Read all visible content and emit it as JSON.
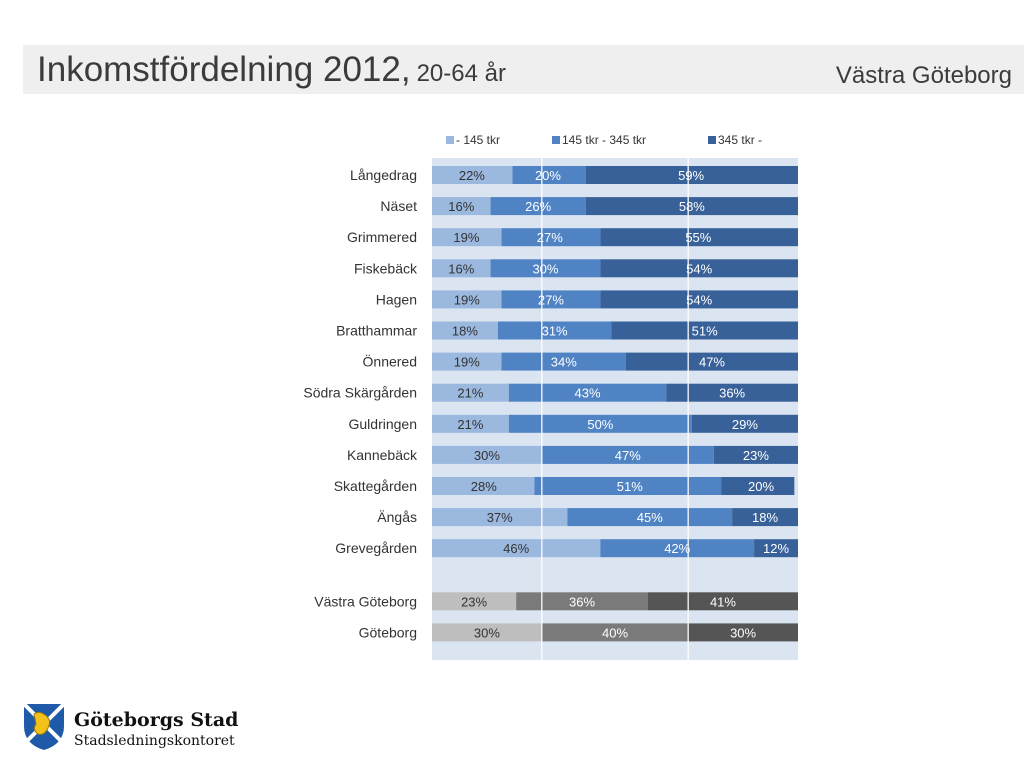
{
  "header": {
    "title": "Inkomstfördelning 2012,",
    "subtitle": "20-64 år",
    "region": "Västra Göteborg"
  },
  "logo": {
    "name": "Göteborgs Stad",
    "department": "Stadsledningskontoret"
  },
  "colors": {
    "low": "#9bb8de",
    "mid": "#4f83c4",
    "high": "#376198",
    "grey_low": "#bebebe",
    "grey_mid": "#7a7a7a",
    "grey_high": "#555555",
    "plot_bg": "#dbe5f1"
  },
  "chart_data": {
    "type": "bar",
    "orientation": "horizontal",
    "stacked": "100%",
    "legend": {
      "position": "top"
    },
    "categories": [
      "Långedrag",
      "Näset",
      "Grimmered",
      "Fiskebäck",
      "Hagen",
      "Bratthammar",
      "Önnered",
      "Södra Skärgården",
      "Guldringen",
      "Kannebäck",
      "Skattegården",
      "Ängås",
      "Grevegården",
      "Västra Göteborg",
      "Göteborg"
    ],
    "gap_before": "Västra Göteborg",
    "series": [
      {
        "name": "- 145 tkr",
        "values": [
          22,
          16,
          19,
          16,
          19,
          18,
          19,
          21,
          21,
          30,
          28,
          37,
          46,
          23,
          30
        ]
      },
      {
        "name": "145 tkr - 345 tkr",
        "values": [
          20,
          26,
          27,
          30,
          27,
          31,
          34,
          43,
          50,
          47,
          51,
          45,
          42,
          36,
          40
        ]
      },
      {
        "name": "345 tkr -",
        "values": [
          59,
          58,
          55,
          54,
          54,
          51,
          47,
          36,
          29,
          23,
          20,
          18,
          12,
          41,
          30
        ]
      }
    ],
    "labels": [
      [
        "22%",
        "20%",
        "59%"
      ],
      [
        "16%",
        "26%",
        "58%"
      ],
      [
        "19%",
        "27%",
        "55%"
      ],
      [
        "16%",
        "30%",
        "54%"
      ],
      [
        "19%",
        "27%",
        "54%"
      ],
      [
        "18%",
        "31%",
        "51%"
      ],
      [
        "19%",
        "34%",
        "47%"
      ],
      [
        "21%",
        "43%",
        "36%"
      ],
      [
        "21%",
        "50%",
        "29%"
      ],
      [
        "30%",
        "47%",
        "23%"
      ],
      [
        "28%",
        "51%",
        "20%"
      ],
      [
        "37%",
        "45%",
        "18%"
      ],
      [
        "46%",
        "42%",
        "12%"
      ],
      [
        "23%",
        "36%",
        "41%"
      ],
      [
        "30%",
        "40%",
        "30%"
      ]
    ],
    "reference_lines": [
      30,
      70
    ],
    "xlim": [
      0,
      100
    ]
  }
}
